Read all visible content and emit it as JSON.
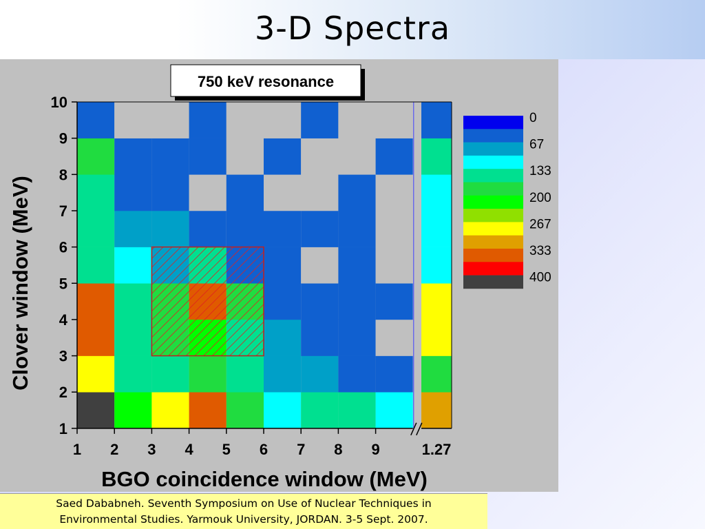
{
  "slide": {
    "title": "3-D Spectra",
    "citation": "Saed Dababneh. Seventh Symposium on Use of Nuclear Techniques in\nEnvironmental Studies. Yarmouk University, JORDAN. 3-5 Sept. 2007."
  },
  "chart_data": {
    "type": "heatmap",
    "title": "750 keV resonance",
    "xlabel": "BGO coincidence window (MeV)",
    "ylabel": "Clover window (MeV)",
    "x_ticks": [
      "1",
      "2",
      "3",
      "4",
      "5",
      "6",
      "7",
      "8",
      "9",
      "1.27"
    ],
    "y_ticks": [
      "1",
      "2",
      "3",
      "4",
      "5",
      "6",
      "7",
      "8",
      "9",
      "10"
    ],
    "x_bins": [
      "1-2",
      "2-3",
      "3-4",
      "4-5",
      "5-6",
      "6-7",
      "7-8",
      "8-9",
      "9-10",
      "1.27"
    ],
    "y_bins": [
      "1-2",
      "2-3",
      "3-4",
      "4-5",
      "5-6",
      "6-7",
      "7-8",
      "8-9",
      "9-10"
    ],
    "value_range": [
      0,
      400
    ],
    "empty_color": "#c0c0c0",
    "grid": [
      [
        400,
        200,
        267,
        333,
        150,
        100,
        133,
        133,
        100,
        300
      ],
      [
        267,
        133,
        133,
        150,
        133,
        67,
        67,
        20,
        20,
        170
      ],
      [
        333,
        133,
        150,
        200,
        130,
        67,
        20,
        20,
        null,
        267
      ],
      [
        333,
        133,
        150,
        333,
        167,
        20,
        20,
        20,
        20,
        267
      ],
      [
        133,
        100,
        67,
        133,
        20,
        20,
        null,
        20,
        null,
        100
      ],
      [
        133,
        67,
        67,
        20,
        20,
        20,
        20,
        20,
        null,
        100
      ],
      [
        133,
        20,
        20,
        null,
        20,
        null,
        null,
        20,
        null,
        100
      ],
      [
        160,
        20,
        20,
        20,
        null,
        20,
        null,
        null,
        20,
        133
      ],
      [
        20,
        null,
        null,
        20,
        null,
        null,
        20,
        null,
        null,
        20
      ]
    ],
    "highlight_region": {
      "x": [
        3,
        6
      ],
      "y": [
        3,
        6
      ],
      "pattern": "red diagonal hatch"
    },
    "legend": {
      "position": "right",
      "labels": [
        "0",
        "67",
        "133",
        "200",
        "267",
        "333",
        "400"
      ],
      "colors": [
        "#0000ee",
        "#1060d0",
        "#00a0c8",
        "#00ffff",
        "#00e090",
        "#20dc40",
        "#00ff00",
        "#90e000",
        "#ffff00",
        "#e0a000",
        "#e05a00",
        "#ff0000",
        "#404040"
      ]
    }
  }
}
